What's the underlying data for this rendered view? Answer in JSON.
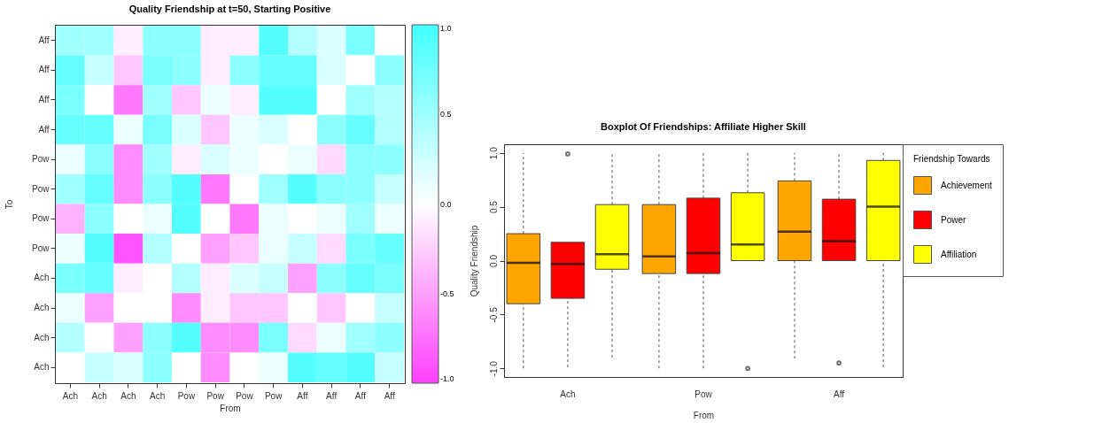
{
  "chart_data": [
    {
      "type": "heatmap",
      "title": "Quality Friendship at t=50, Starting Positive",
      "xlabel": "From",
      "ylabel": "To",
      "categories": [
        "Ach",
        "Ach",
        "Ach",
        "Ach",
        "Pow",
        "Pow",
        "Pow",
        "Pow",
        "Aff",
        "Aff",
        "Aff",
        "Aff"
      ],
      "y_categories": [
        "Aff",
        "Aff",
        "Aff",
        "Aff",
        "Pow",
        "Pow",
        "Pow",
        "Pow",
        "Ach",
        "Ach",
        "Ach",
        "Ach"
      ],
      "cells": [
        [
          0.5,
          0.5,
          -0.1,
          0.6,
          0.6,
          -0.1,
          -0.1,
          0.9,
          0.4,
          0.2,
          0.7,
          0
        ],
        [
          0.8,
          0.3,
          -0.3,
          0.7,
          0.6,
          -0.1,
          0.6,
          0.8,
          0.8,
          0.2,
          0,
          0.6
        ],
        [
          0.7,
          0,
          -0.7,
          0.5,
          -0.3,
          0.1,
          -0.1,
          0.9,
          0.9,
          0,
          0.5,
          0.4
        ],
        [
          0.8,
          0.8,
          0.1,
          0.7,
          0.2,
          -0.3,
          0.1,
          0.2,
          0,
          0.6,
          0.8,
          0.4
        ],
        [
          0.1,
          0.6,
          -0.6,
          0.5,
          -0.1,
          0.2,
          0.1,
          0,
          0.1,
          -0.2,
          0.6,
          0.6
        ],
        [
          0.5,
          0.8,
          -0.6,
          0.6,
          0.9,
          -0.7,
          0,
          0.5,
          0.9,
          0.6,
          0.6,
          0.3
        ],
        [
          -0.4,
          0.6,
          0,
          0.1,
          0.9,
          0,
          -0.7,
          0.1,
          0,
          0.1,
          0.5,
          0.1
        ],
        [
          0.1,
          0.9,
          -0.9,
          0.4,
          0,
          -0.5,
          -0.3,
          0.1,
          0.3,
          -0.2,
          0.7,
          0.8
        ],
        [
          0.7,
          0.8,
          -0.1,
          0,
          0.4,
          -0.1,
          0.2,
          0.3,
          -0.5,
          0.6,
          0.8,
          0.7
        ],
        [
          0.1,
          -0.5,
          0,
          0,
          -0.6,
          -0.1,
          -0.3,
          -0.3,
          0,
          -0.3,
          0,
          0.3
        ],
        [
          0.4,
          0,
          -0.5,
          0.6,
          0.9,
          -0.6,
          -0.6,
          0.7,
          -0.2,
          0.1,
          0.5,
          0.6
        ],
        [
          0,
          0.3,
          0.2,
          0.6,
          0,
          -0.6,
          0,
          0.1,
          0.9,
          0.8,
          0.9,
          0.3
        ]
      ],
      "clim": [
        -1,
        1
      ],
      "cticks": [
        {
          "value": -1,
          "label": "-1.0"
        },
        {
          "value": -0.5,
          "label": "-0.5"
        },
        {
          "value": 0,
          "label": "0.0"
        },
        {
          "value": 0.5,
          "label": "0.5"
        },
        {
          "value": 1,
          "label": "1.0"
        }
      ]
    },
    {
      "type": "box",
      "title": "Boxplot Of Friendships: Affiliate Higher Skill",
      "xlabel": "From",
      "ylabel": "Quality Friendship",
      "legend_title": "Friendship Towards",
      "legend": "right",
      "categories": [
        "Ach",
        "Pow",
        "Aff"
      ],
      "ylim": [
        -1.08,
        1.08
      ],
      "yticks": [
        {
          "value": -1,
          "label": "-1.0"
        },
        {
          "value": -0.5,
          "label": "-0.5"
        },
        {
          "value": 0,
          "label": "0.0"
        },
        {
          "value": 0.5,
          "label": "0.5"
        },
        {
          "value": 1,
          "label": "1.0"
        }
      ],
      "series": [
        {
          "name": "Achievement",
          "color": "#ffa500",
          "boxes": [
            {
              "low": -1,
              "q1": -0.4,
              "median": -0.02,
              "q3": 0.25,
              "high": 1
            },
            {
              "low": -1,
              "q1": -0.12,
              "median": 0.04,
              "q3": 0.52,
              "high": 1
            },
            {
              "low": -0.91,
              "q1": 0,
              "median": 0.27,
              "q3": 0.74,
              "high": 1
            }
          ]
        },
        {
          "name": "Power",
          "color": "#ff0000",
          "boxes": [
            {
              "low": -0.99,
              "q1": -0.35,
              "median": -0.03,
              "q3": 0.17,
              "high": 0.17,
              "outliers": [
                0.99
              ]
            },
            {
              "low": -1,
              "q1": -0.12,
              "median": 0.07,
              "q3": 0.58,
              "high": 1
            },
            {
              "low": 0,
              "q1": 0,
              "median": 0.18,
              "q3": 0.57,
              "high": 0.99,
              "outliers": [
                -0.95
              ]
            }
          ]
        },
        {
          "name": "Affiliation",
          "color": "#ffff00",
          "boxes": [
            {
              "low": -0.9,
              "q1": -0.08,
              "median": 0.06,
              "q3": 0.52,
              "high": 0.99
            },
            {
              "low": 0,
              "q1": 0,
              "median": 0.15,
              "q3": 0.63,
              "high": 1,
              "outliers": [
                -1
              ]
            },
            {
              "low": -0.99,
              "q1": 0,
              "median": 0.5,
              "q3": 0.93,
              "high": 1
            }
          ]
        }
      ]
    }
  ]
}
